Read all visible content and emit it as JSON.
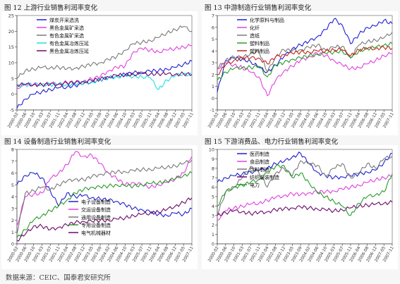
{
  "source_text": "数据来源：CEIC、国泰君安研究所",
  "chart_data": [
    {
      "type": "line",
      "caption": "图 12  上游行业销售利润率变化",
      "ylim": [
        -5,
        25
      ],
      "yticks": [
        -5,
        0,
        5,
        10,
        15,
        20,
        25
      ],
      "x_labels": [
        "2000-02",
        "2000-06",
        "2000-10",
        "2001-03",
        "2001-07",
        "2001-11",
        "2002-04",
        "2002-08",
        "2002-12",
        "2003-05",
        "2003-09",
        "2004-02",
        "2004-06",
        "2004-10",
        "2005-03",
        "2005-07",
        "2005-11",
        "2006-04",
        "2006-08",
        "2006-12",
        "2007-05",
        "2007-11"
      ],
      "grid": false,
      "legend_position": "top-left",
      "series": [
        {
          "name": "煤炭开采选洗",
          "color": "#1f1fd0",
          "values": [
            -4.5,
            -1.5,
            0,
            0.8,
            1.5,
            2,
            2.3,
            2.8,
            3.3,
            4,
            4.6,
            5.2,
            5.8,
            6.3,
            6.8,
            7,
            7.3,
            7.5,
            8,
            8.5,
            9.5,
            10.5
          ]
        },
        {
          "name": "黑色金属矿采选",
          "color": "#e040e0",
          "values": [
            2,
            3,
            3.2,
            3,
            3.4,
            3.3,
            3.8,
            3.6,
            4.2,
            4.8,
            5.6,
            7.5,
            8.5,
            9,
            13.5,
            14.5,
            14,
            13.5,
            14,
            14.5,
            15,
            15.5
          ]
        },
        {
          "name": "有色金属矿采选",
          "color": "#7a7a7a",
          "values": [
            5,
            7.5,
            8,
            8.5,
            8.4,
            8.6,
            8,
            8.3,
            8.8,
            9.5,
            10,
            11,
            12,
            14,
            16,
            16.5,
            17,
            18,
            19.5,
            20.5,
            21.5,
            20
          ]
        },
        {
          "name": "有色金属冶炼压延",
          "color": "#20e0e0",
          "values": [
            2.5,
            3,
            3,
            3.2,
            3,
            3.2,
            3,
            3.3,
            3.5,
            3.8,
            4.5,
            5.2,
            5.5,
            5.8,
            5.6,
            5.6,
            5.2,
            1.5,
            4.5,
            5.8,
            6.5,
            6
          ]
        },
        {
          "name": "黑色金属冶炼压延",
          "color": "#6b0a6b",
          "values": [
            3,
            3.1,
            3,
            3,
            3.1,
            3.2,
            3.5,
            3.7,
            4,
            4.3,
            4.8,
            5.5,
            6,
            6.1,
            6.3,
            6.5,
            6.4,
            6.5,
            6.4,
            6.3,
            6.5,
            6.2
          ]
        }
      ]
    },
    {
      "type": "line",
      "caption": "图 13  中游制造行业销售利润率变化",
      "ylim": [
        -1,
        7
      ],
      "yticks": [
        -1,
        0,
        1,
        2,
        3,
        4,
        5,
        6,
        7
      ],
      "x_labels": [
        "2000-02",
        "2000-06",
        "2000-10",
        "2001-03",
        "2001-07",
        "2001-11",
        "2002-04",
        "2002-08",
        "2002-12",
        "2003-05",
        "2003-09",
        "2004-02",
        "2004-06",
        "2004-10",
        "2005-03",
        "2005-07",
        "2005-11",
        "2006-04",
        "2006-08",
        "2006-12",
        "2007-05",
        "2007-11"
      ],
      "grid": false,
      "legend_position": "top-left",
      "series": [
        {
          "name": "化学原料与制品",
          "color": "#1f1fd0",
          "values": [
            0.5,
            3.2,
            3.4,
            3.3,
            3.1,
            2.6,
            2.2,
            2.8,
            3.5,
            4.2,
            4.5,
            4.8,
            5.2,
            5.8,
            6.7,
            6.2,
            4.6,
            5.4,
            6,
            6.1,
            6.6,
            6.3
          ]
        },
        {
          "name": "化纤",
          "color": "#e040e0",
          "values": [
            2.5,
            3,
            2.8,
            2.6,
            2.2,
            1.8,
            0.2,
            1.5,
            2.3,
            2.7,
            3.2,
            3.5,
            3.8,
            3.6,
            3.2,
            2.8,
            2.5,
            2.6,
            2.9,
            3.2,
            3.6,
            3.8
          ]
        },
        {
          "name": "造纸",
          "color": "#7a7a7a",
          "values": [
            2.5,
            3.2,
            3.5,
            3.4,
            3.8,
            4,
            2.2,
            3.5,
            4.1,
            4,
            4.1,
            4.3,
            4.5,
            4.1,
            4.3,
            4.4,
            3.4,
            4.5,
            4.8,
            4.9,
            5.1,
            5.6
          ]
        },
        {
          "name": "塑料制品",
          "color": "#2c9a2c",
          "values": [
            1.5,
            2.2,
            2.5,
            2.6,
            2.6,
            2.7,
            1.8,
            2.8,
            3,
            3.3,
            3.4,
            3.6,
            3.7,
            3.8,
            3.9,
            4,
            3.4,
            4,
            4.2,
            4.3,
            4.5,
            4.6
          ]
        },
        {
          "name": "塑料制品",
          "color": "#c0261e",
          "values": [
            2,
            2.8,
            3.2,
            3.4,
            3.4,
            3.4,
            2.9,
            3.5,
            3.7,
            3.8,
            3.9,
            3.9,
            4,
            4,
            4.1,
            4.1,
            3.6,
            4.1,
            4.2,
            4.2,
            4.3,
            4.2
          ]
        }
      ]
    },
    {
      "type": "line",
      "caption": "图 14  设备制造行业销售利润率变化",
      "ylim": [
        0,
        8
      ],
      "yticks": [
        0,
        1,
        2,
        3,
        4,
        5,
        6,
        7,
        8
      ],
      "x_labels": [
        "2000-02",
        "2000-06",
        "2000-10",
        "2001-03",
        "2001-07",
        "2001-11",
        "2002-04",
        "2002-08",
        "2002-12",
        "2003-05",
        "2003-09",
        "2004-02",
        "2004-06",
        "2004-10",
        "2005-03",
        "2005-07",
        "2005-11",
        "2006-04",
        "2006-08",
        "2006-12",
        "2007-05",
        "2007-11"
      ],
      "grid": false,
      "legend_position": "bottom-center",
      "series": [
        {
          "name": "电子设备制造",
          "color": "#1f1fd0",
          "values": [
            5,
            5.8,
            6,
            5.6,
            4.5,
            3.2,
            4.3,
            4,
            4.1,
            3.9,
            3.8,
            3.7,
            3.6,
            3.3,
            3,
            2.9,
            2.7,
            2.5,
            2.4,
            2.6,
            2.5,
            3
          ]
        },
        {
          "name": "交运设备制造",
          "color": "#e040e0",
          "values": [
            1.5,
            4,
            4.2,
            4.3,
            5.5,
            6,
            6.7,
            7.8,
            7.4,
            7.5,
            6.8,
            6,
            5.5,
            5,
            5.2,
            5,
            4.8,
            5,
            5.2,
            5.5,
            6,
            7.4
          ]
        },
        {
          "name": "通用设备制造",
          "color": "#7a7a7a",
          "values": [
            0.8,
            4.3,
            4.5,
            4.8,
            4.6,
            5,
            5.3,
            5.5,
            5.4,
            5.7,
            5.9,
            6,
            6.1,
            6.1,
            6.2,
            6.3,
            6.3,
            6.4,
            6.5,
            6.6,
            6.8,
            7.1
          ]
        },
        {
          "name": "专用设备制造",
          "color": "#2c9a2c",
          "values": [
            0.5,
            1.2,
            2,
            2.4,
            2.8,
            3.2,
            3.7,
            4.3,
            4.6,
            4.8,
            4.8,
            4.9,
            5,
            4.9,
            4.9,
            5,
            5.1,
            5.2,
            5.3,
            5.5,
            5.8,
            6
          ]
        },
        {
          "name": "电气机械器材",
          "color": "#6b0a6b",
          "values": [
            0.3,
            0.8,
            1.5,
            1.5,
            1.2,
            1.4,
            1.6,
            1.8,
            1.9,
            1.9,
            2,
            2,
            2.1,
            2.2,
            2.4,
            2.5,
            2.6,
            2.7,
            2.9,
            3.2,
            3.5,
            3.9
          ]
        }
      ]
    },
    {
      "type": "line",
      "caption": "图 15  下游消费品、电力行业销售利润率变化",
      "ylim": [
        0,
        10
      ],
      "yticks": [
        0,
        1,
        2,
        3,
        4,
        5,
        6,
        7,
        8,
        9,
        10
      ],
      "x_labels": [
        "2000-02",
        "2000-06",
        "2000-10",
        "2001-03",
        "2001-07",
        "2001-11",
        "2002-04",
        "2002-08",
        "2002-12",
        "2003-05",
        "2003-09",
        "2004-02",
        "2004-06",
        "2004-10",
        "2005-03",
        "2005-07",
        "2005-11",
        "2006-04",
        "2006-08",
        "2006-12",
        "2007-05",
        "2007-11"
      ],
      "grid": false,
      "legend_position": "top-left",
      "series": [
        {
          "name": "医药制造",
          "color": "#1f1fd0",
          "values": [
            6.5,
            7,
            7.2,
            7.4,
            7.6,
            7.8,
            8,
            8.5,
            8.7,
            9.2,
            9.6,
            8.5,
            7.6,
            7.2,
            7,
            7.1,
            7.2,
            7.4,
            7.6,
            7.8,
            8.6,
            9.6
          ]
        },
        {
          "name": "食品制造",
          "color": "#e040e0",
          "values": [
            2.5,
            3.5,
            3.8,
            4,
            4.2,
            4.3,
            4.6,
            4.9,
            5.1,
            5.3,
            5.2,
            5.4,
            5.5,
            5.5,
            5.6,
            5.8,
            6,
            6.2,
            6.5,
            6.8,
            7,
            7.2
          ]
        },
        {
          "name": "饮料制造",
          "color": "#7a7a7a",
          "values": [
            3,
            5.5,
            6,
            7,
            8.2,
            7.5,
            6,
            7.5,
            8,
            7.2,
            8.8,
            8.5,
            8.3,
            7.2,
            8,
            8.5,
            7,
            7.5,
            8.5,
            8,
            9,
            9.3
          ]
        },
        {
          "name": "纺织服装制造",
          "color": "#6b0a6b",
          "values": [
            3,
            3.3,
            3.5,
            3.4,
            3.2,
            3.3,
            3.4,
            3.6,
            3.7,
            3.8,
            3.9,
            3.8,
            3.7,
            3.6,
            3.5,
            3.6,
            3.8,
            4,
            4.1,
            4.2,
            4.3,
            4.4
          ]
        },
        {
          "name": "电力",
          "color": "#2c9a2c",
          "values": [
            4,
            5.5,
            6,
            6.2,
            6.5,
            6.8,
            7.5,
            8.2,
            8.3,
            7,
            7.5,
            6.5,
            5.4,
            5,
            4.5,
            4,
            3,
            4.3,
            5,
            5.2,
            5.5,
            7.4
          ]
        }
      ]
    }
  ]
}
